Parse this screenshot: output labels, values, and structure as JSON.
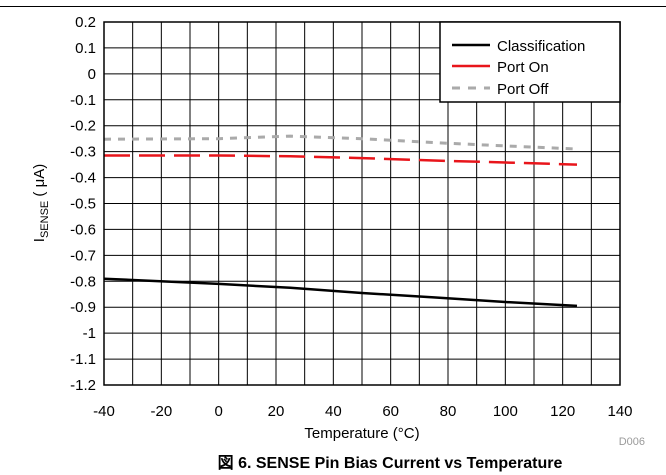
{
  "chart_data": {
    "type": "line",
    "x_range": [
      -40,
      140
    ],
    "y_range": [
      -1.2,
      0.2
    ],
    "x_ticks": [
      "-40",
      "-20",
      "0",
      "20",
      "40",
      "60",
      "80",
      "100",
      "120",
      "140"
    ],
    "y_ticks": [
      "0.2",
      "0.1",
      "0",
      "-0.1",
      "-0.2",
      "-0.3",
      "-0.4",
      "-0.5",
      "-0.6",
      "-0.7",
      "-0.8",
      "-0.9",
      "-1",
      "-1.1",
      "-1.2"
    ],
    "xlabel": "Temperature (°C)",
    "ylabel_main": "I",
    "ylabel_sub": "SENSE",
    "ylabel_unit": " ( μA)",
    "grid": true,
    "legend_placement": "top-right",
    "series": [
      {
        "name": "Classification",
        "color": "#000000",
        "dash": "solid",
        "x": [
          -40,
          0,
          25,
          50,
          75,
          100,
          125
        ],
        "y": [
          -0.79,
          -0.81,
          -0.825,
          -0.845,
          -0.862,
          -0.88,
          -0.895
        ]
      },
      {
        "name": "Port On",
        "color": "#e8151b",
        "dash": "long-dash",
        "x": [
          -40,
          0,
          25,
          50,
          75,
          100,
          125
        ],
        "y": [
          -0.315,
          -0.315,
          -0.318,
          -0.325,
          -0.334,
          -0.342,
          -0.35
        ]
      },
      {
        "name": "Port Off",
        "color": "#aaaaaa",
        "dash": "short-dash",
        "x": [
          -40,
          0,
          25,
          50,
          75,
          100,
          125
        ],
        "y": [
          -0.252,
          -0.25,
          -0.24,
          -0.25,
          -0.265,
          -0.278,
          -0.29
        ]
      }
    ]
  },
  "figure_id": "D006",
  "caption": "図 6. SENSE Pin Bias Current vs Temperature"
}
